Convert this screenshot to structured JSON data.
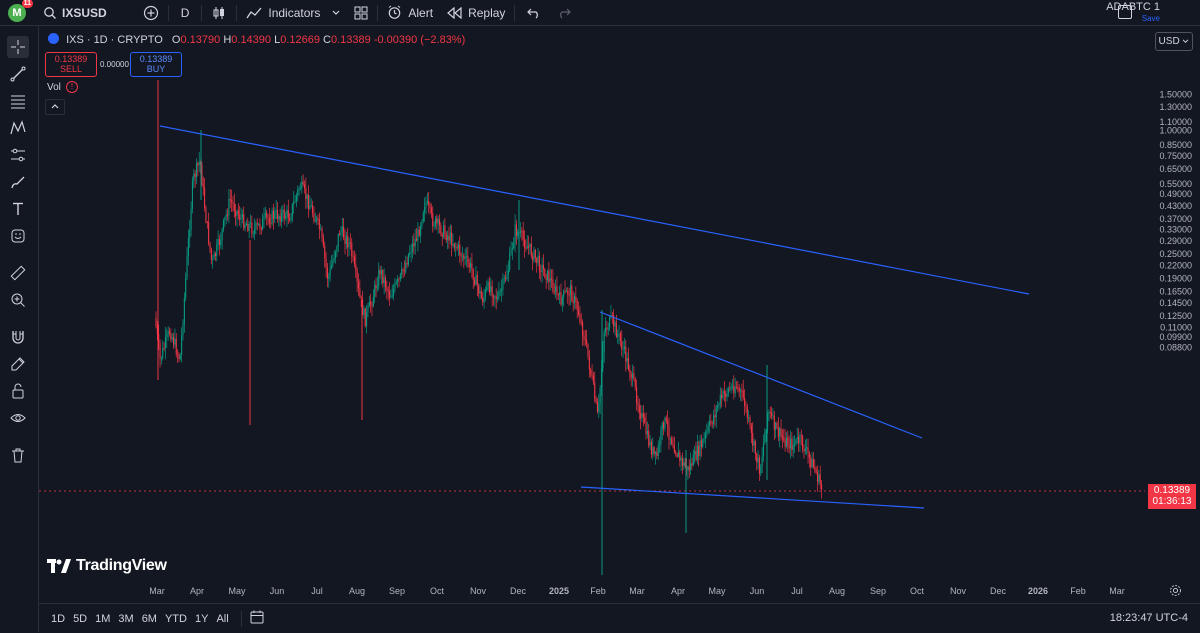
{
  "topbar": {
    "avatar_letter": "M",
    "notif_count": "11",
    "symbol": "IXSUSD",
    "interval": "D",
    "indicators": "Indicators",
    "alert": "Alert",
    "replay": "Replay",
    "layout_name": "ADABTC 1",
    "save_label": "Save"
  },
  "legend": {
    "title": "IXS · 1D · CRYPTO",
    "open_label": "O",
    "open": "0.13790",
    "high_label": "H",
    "high": "0.14390",
    "low_label": "L",
    "low": "0.12669",
    "close_label": "C",
    "close": "0.13389",
    "change": "-0.00390 (−2.83%)",
    "sell_price": "0.13389",
    "sell_label": "SELL",
    "buy_price": "0.13389",
    "buy_label": "BUY",
    "spread": "0.00000",
    "vol_label": "Vol",
    "vol_warn": "!"
  },
  "currency": "USD",
  "price_tag": {
    "price": "0.13389",
    "countdown": "01:36:13"
  },
  "brand": "TradingView",
  "price_axis": [
    {
      "label": "1.50000"
    },
    {
      "label": "1.30000"
    },
    {
      "label": "1.10000"
    },
    {
      "label": "1.00000"
    },
    {
      "label": "0.85000"
    },
    {
      "label": "0.75000"
    },
    {
      "label": "0.65000"
    },
    {
      "label": "0.55000"
    },
    {
      "label": "0.49000"
    },
    {
      "label": "0.43000"
    },
    {
      "label": "0.37000"
    },
    {
      "label": "0.33000"
    },
    {
      "label": "0.29000"
    },
    {
      "label": "0.25000"
    },
    {
      "label": "0.22000"
    },
    {
      "label": "0.19000"
    },
    {
      "label": "0.16500"
    },
    {
      "label": "0.14500"
    },
    {
      "label": "0.12500"
    },
    {
      "label": "0.11000"
    },
    {
      "label": "0.09900"
    },
    {
      "label": "0.08800"
    }
  ],
  "time_axis": [
    "Mar",
    "Apr",
    "May",
    "Jun",
    "Jul",
    "Aug",
    "Sep",
    "Oct",
    "Nov",
    "Dec",
    "2025",
    "Feb",
    "Mar",
    "Apr",
    "May",
    "Jun",
    "Jul",
    "Aug",
    "Sep",
    "Oct",
    "Nov",
    "Dec",
    "2026",
    "Feb",
    "Mar"
  ],
  "ranges": [
    "1D",
    "5D",
    "1M",
    "3M",
    "6M",
    "YTD",
    "1Y",
    "All"
  ],
  "clock": "18:23:47 UTC-4",
  "colors": {
    "up": "#089981",
    "down": "#f23645",
    "trendline": "#2962ff",
    "background": "#131722"
  }
}
